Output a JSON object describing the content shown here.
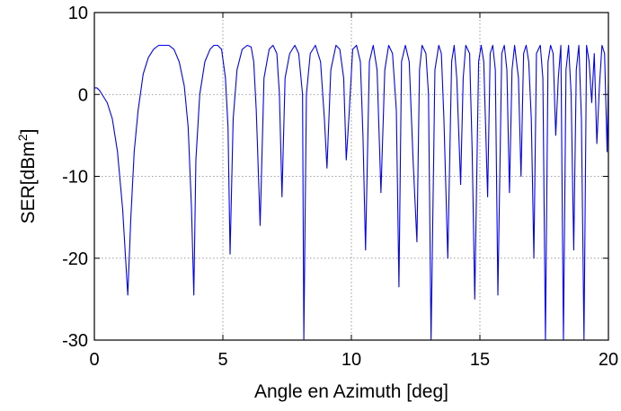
{
  "chart_data": {
    "type": "line",
    "xlabel": "Angle en Azimuth [deg]",
    "ylabel_main": "SER[dBm",
    "ylabel_sup": "2",
    "ylabel_close": "]",
    "xlim": [
      0,
      20
    ],
    "ylim": [
      -30,
      10
    ],
    "xticks": [
      0,
      5,
      10,
      15,
      20
    ],
    "xtick_labels": [
      "0",
      "5",
      "10",
      "15",
      "20"
    ],
    "yticks": [
      -30,
      -20,
      -10,
      0,
      10
    ],
    "ytick_labels": [
      "-30",
      "-20",
      "-10",
      "0",
      "10"
    ],
    "grid": true,
    "line_color": "#0000ff",
    "series": [
      {
        "x": [
          0,
          0.1,
          0.2,
          0.3,
          0.5,
          0.7,
          0.9,
          1.1,
          1.3,
          1.42,
          1.55,
          1.7,
          1.9,
          2.1,
          2.3,
          2.5,
          2.7,
          2.9,
          3.1,
          3.3,
          3.5,
          3.65,
          3.78,
          3.87,
          3.95,
          4.1,
          4.3,
          4.5,
          4.65,
          4.8,
          4.95,
          5.1,
          5.2,
          5.28,
          5.4,
          5.55,
          5.75,
          5.95,
          6.1,
          6.2,
          6.3,
          6.45,
          6.6,
          6.8,
          6.95,
          7.1,
          7.2,
          7.3,
          7.42,
          7.6,
          7.8,
          7.95,
          8.1,
          8.15,
          8.25,
          8.4,
          8.6,
          8.8,
          8.95,
          9.05,
          9.2,
          9.4,
          9.55,
          9.7,
          9.8,
          9.9,
          10.05,
          10.2,
          10.35,
          10.45,
          10.55,
          10.7,
          10.85,
          11.0,
          11.15,
          11.3,
          11.45,
          11.6,
          11.75,
          11.85,
          11.95,
          12.1,
          12.25,
          12.4,
          12.55,
          12.65,
          12.75,
          12.9,
          13.0,
          13.1,
          13.25,
          13.4,
          13.5,
          13.6,
          13.75,
          13.9,
          14.0,
          14.1,
          14.25,
          14.35,
          14.45,
          14.6,
          14.7,
          14.8,
          14.95,
          15.05,
          15.15,
          15.3,
          15.4,
          15.5,
          15.6,
          15.7,
          15.85,
          15.95,
          16.05,
          16.15,
          16.25,
          16.35,
          16.5,
          16.6,
          16.7,
          16.8,
          16.9,
          17.0,
          17.1,
          17.2,
          17.35,
          17.45,
          17.55,
          17.65,
          17.75,
          17.85,
          17.95,
          18.05,
          18.15,
          18.25,
          18.35,
          18.45,
          18.55,
          18.65,
          18.75,
          18.85,
          18.95,
          19.05,
          19.15,
          19.25,
          19.35,
          19.45,
          19.55,
          19.65,
          19.75,
          19.85,
          19.95,
          20.0
        ],
        "y": [
          0.8,
          0.8,
          0.5,
          0.0,
          -1.0,
          -3.0,
          -7.0,
          -14.0,
          -24.5,
          -15.0,
          -7.0,
          -2.0,
          2.5,
          4.5,
          5.5,
          6.0,
          6.0,
          6.0,
          5.5,
          4.0,
          1.0,
          -4.0,
          -14.0,
          -24.5,
          -8.0,
          0.0,
          4.0,
          5.5,
          6.0,
          6.0,
          5.5,
          2.0,
          -4.0,
          -19.5,
          -3.0,
          3.0,
          5.5,
          6.0,
          5.8,
          4.0,
          -2.0,
          -16.0,
          2.0,
          5.5,
          6.0,
          5.0,
          0.0,
          -12.5,
          2.0,
          5.0,
          6.0,
          5.0,
          0.0,
          -30.0,
          0.0,
          5.0,
          6.0,
          4.0,
          -3.0,
          -9.0,
          3.0,
          6.0,
          5.5,
          2.0,
          -8.0,
          -3.0,
          5.5,
          6.0,
          4.0,
          -5.0,
          -19.0,
          4.0,
          6.0,
          3.0,
          -12.0,
          3.0,
          6.0,
          5.0,
          -2.0,
          -23.5,
          4.0,
          6.0,
          4.0,
          -8.0,
          -18.0,
          3.0,
          6.0,
          5.0,
          0.0,
          -30.0,
          3.0,
          6.0,
          5.0,
          -3.0,
          -20.0,
          4.0,
          6.0,
          2.0,
          -11.0,
          2.0,
          6.0,
          5.0,
          -7.0,
          -25.0,
          4.0,
          6.0,
          4.0,
          -12.5,
          5.0,
          6.0,
          3.0,
          -24.5,
          5.0,
          6.0,
          3.0,
          -12.0,
          3.0,
          6.0,
          2.0,
          -10.0,
          5.0,
          6.0,
          4.0,
          -3.0,
          -20.0,
          5.0,
          6.0,
          2.0,
          -30.0,
          4.0,
          6.0,
          5.0,
          -5.0,
          2.0,
          6.0,
          -30.0,
          3.0,
          6.0,
          0.0,
          -19.0,
          3.0,
          6.0,
          -3.0,
          -30.0,
          6.0,
          4.0,
          -1.0,
          5.0,
          -6.0,
          1.0,
          6.0,
          5.0,
          -7.0,
          1.5
        ]
      }
    ]
  }
}
